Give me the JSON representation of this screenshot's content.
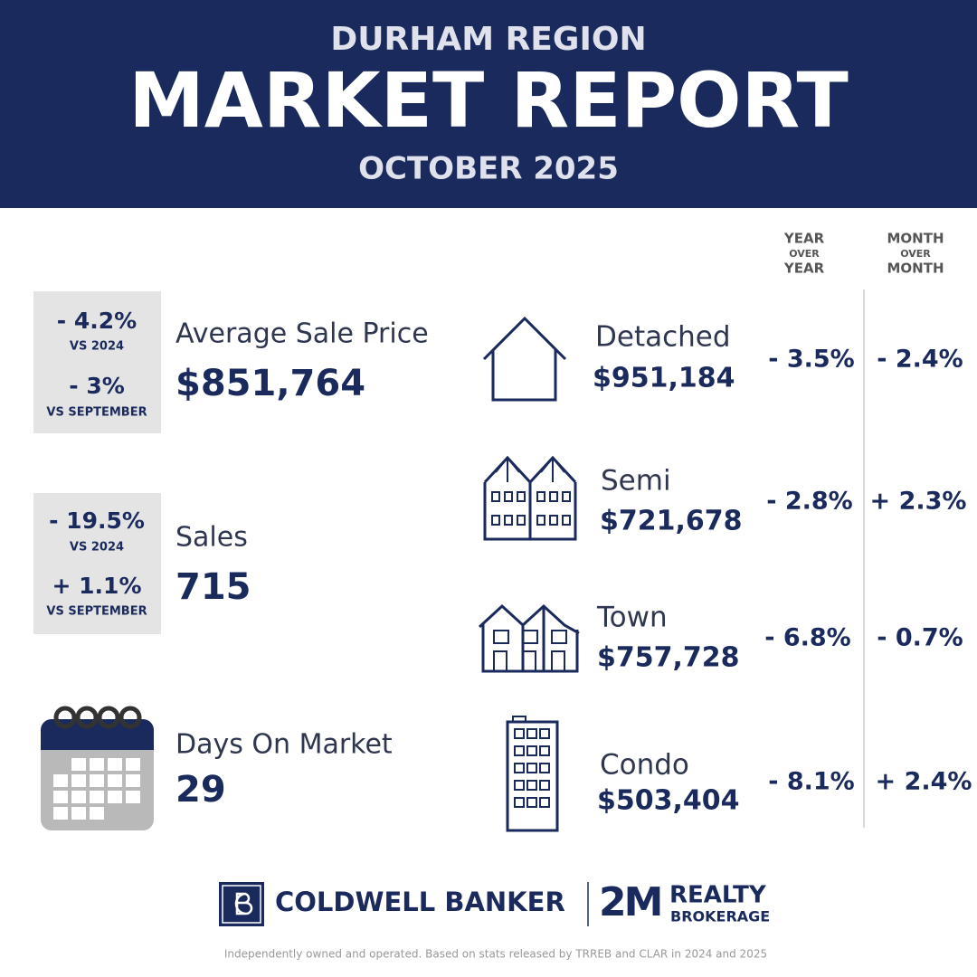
{
  "header": {
    "region": "DURHAM REGION",
    "title": "MARKET REPORT",
    "period": "OCTOBER 2025"
  },
  "column_headers": [
    [
      "YEAR",
      "OVER",
      "YEAR"
    ],
    [
      "MONTH",
      "OVER",
      "MONTH"
    ]
  ],
  "summary": [
    {
      "label": "Average Sale Price",
      "value": "$851,764",
      "changes": [
        {
          "value": "- 4.2%",
          "label": "VS 2024"
        },
        {
          "value": "- 3%",
          "label": "VS SEPTEMBER"
        }
      ]
    },
    {
      "label": "Sales",
      "value": "715",
      "changes": [
        {
          "value": "- 19.5%",
          "label": "VS 2024"
        },
        {
          "value": "+ 1.1%",
          "label": "VS SEPTEMBER"
        }
      ]
    },
    {
      "label": "Days On Market",
      "value": "29"
    }
  ],
  "property_types": [
    {
      "name": "Detached",
      "price": "$951,184",
      "yoy": "- 3.5%",
      "mom": "- 2.4%"
    },
    {
      "name": "Semi",
      "price": "$721,678",
      "yoy": "- 2.8%",
      "mom": "+ 2.3%"
    },
    {
      "name": "Town",
      "price": "$757,728",
      "yoy": "- 6.8%",
      "mom": "- 0.7%"
    },
    {
      "name": "Condo",
      "price": "$503,404",
      "yoy": "- 8.1%",
      "mom": "+ 2.4%"
    }
  ],
  "footer": {
    "brand": "COLDWELL BANKER",
    "partner": "2M",
    "partner_name": "REALTY",
    "partner_sub": "BROKERAGE",
    "disclaimer": "Independently owned and operated. Based on stats released by TRREB and CLAR  in 2024 and 2025"
  }
}
